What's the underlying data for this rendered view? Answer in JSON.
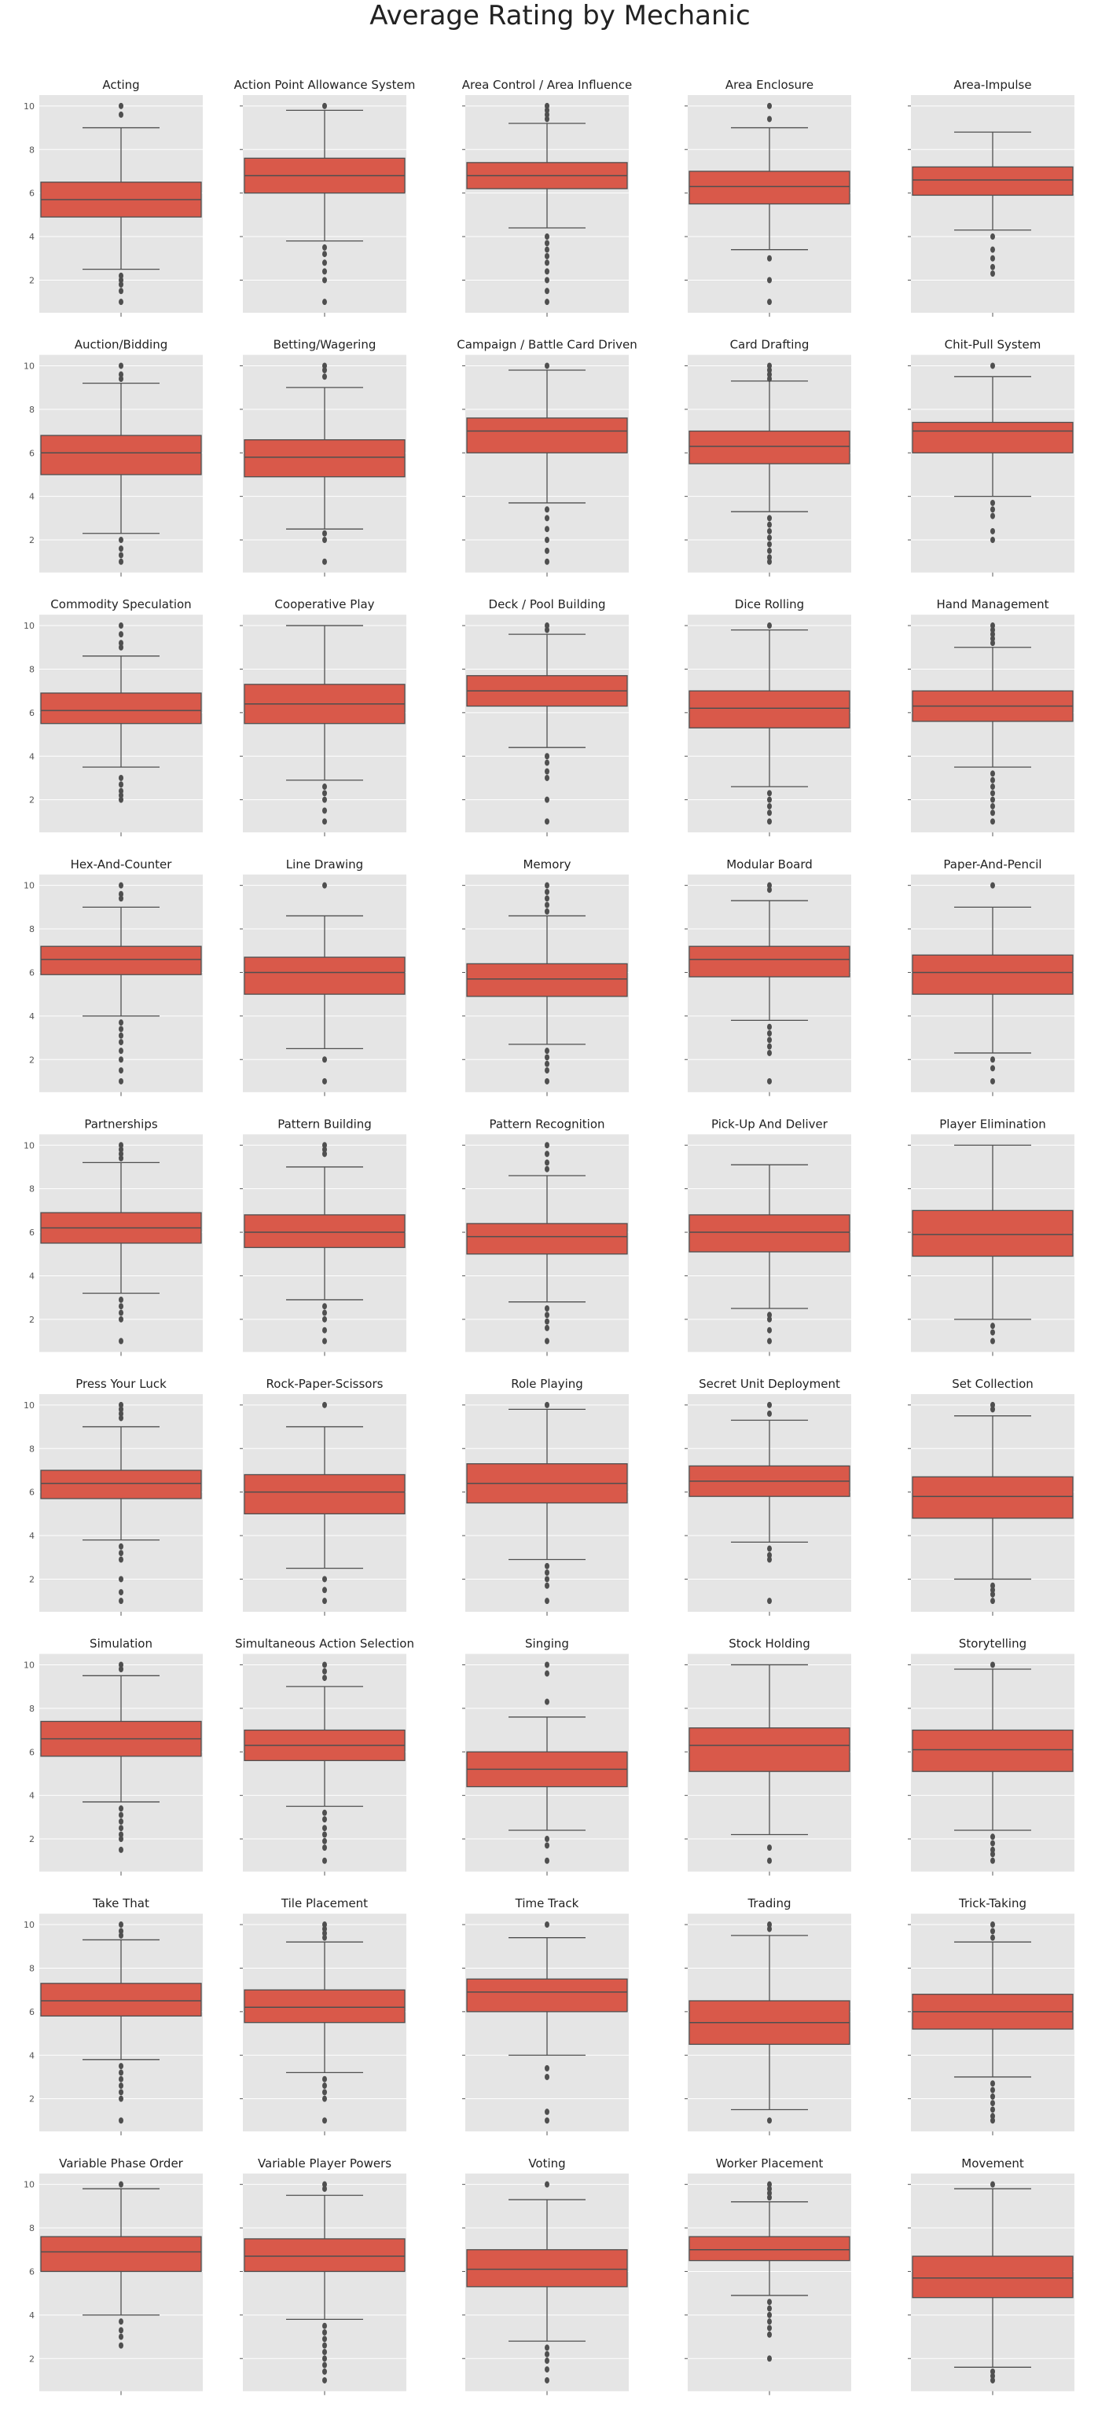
{
  "title": "Average Rating by Mechanic",
  "style": {
    "panel_bg": "#e5e5e5",
    "grid": "#ffffff",
    "box_fill": "#d9594a",
    "line": "#4f4f4f",
    "tick_text": "#555555",
    "title_text": "#222222"
  },
  "chart_data": {
    "type": "box",
    "shared_y": true,
    "ylim": [
      0.5,
      10.5
    ],
    "yticks": [
      2,
      4,
      6,
      8,
      10
    ],
    "grid": true,
    "panels": [
      {
        "title": "Acting",
        "q1": 4.9,
        "median": 5.7,
        "q3": 6.5,
        "whisker_low": 2.5,
        "whisker_high": 9.0,
        "outliers": [
          10,
          9.6,
          2.2,
          2.0,
          1.8,
          1.5,
          1.0
        ]
      },
      {
        "title": "Action Point Allowance System",
        "q1": 6.0,
        "median": 6.8,
        "q3": 7.6,
        "whisker_low": 3.8,
        "whisker_high": 9.8,
        "outliers": [
          10,
          3.5,
          3.2,
          2.8,
          2.4,
          2.0,
          1.0
        ]
      },
      {
        "title": "Area Control / Area Influence",
        "q1": 6.2,
        "median": 6.8,
        "q3": 7.4,
        "whisker_low": 4.4,
        "whisker_high": 9.2,
        "outliers": [
          10,
          9.8,
          9.6,
          9.4,
          4.0,
          3.7,
          3.4,
          3.1,
          2.8,
          2.4,
          2.0,
          1.5,
          1.0
        ]
      },
      {
        "title": "Area Enclosure",
        "q1": 5.5,
        "median": 6.3,
        "q3": 7.0,
        "whisker_low": 3.4,
        "whisker_high": 9.0,
        "outliers": [
          10,
          9.4,
          3.0,
          2.0,
          1.0
        ]
      },
      {
        "title": "Area-Impulse",
        "q1": 5.9,
        "median": 6.6,
        "q3": 7.2,
        "whisker_low": 4.3,
        "whisker_high": 8.8,
        "outliers": [
          4.0,
          3.4,
          3.0,
          2.6,
          2.3
        ]
      },
      {
        "title": "Auction/Bidding",
        "q1": 5.0,
        "median": 6.0,
        "q3": 6.8,
        "whisker_low": 2.3,
        "whisker_high": 9.2,
        "outliers": [
          10,
          9.6,
          9.4,
          2.0,
          1.6,
          1.3,
          1.0
        ]
      },
      {
        "title": "Betting/Wagering",
        "q1": 4.9,
        "median": 5.8,
        "q3": 6.6,
        "whisker_low": 2.5,
        "whisker_high": 9.0,
        "outliers": [
          10,
          9.8,
          9.5,
          2.3,
          2.0,
          1.0
        ]
      },
      {
        "title": "Campaign / Battle Card Driven",
        "q1": 6.0,
        "median": 7.0,
        "q3": 7.6,
        "whisker_low": 3.7,
        "whisker_high": 9.8,
        "outliers": [
          10,
          3.4,
          3.0,
          2.5,
          2.0,
          1.5,
          1.0
        ]
      },
      {
        "title": "Card Drafting",
        "q1": 5.5,
        "median": 6.3,
        "q3": 7.0,
        "whisker_low": 3.3,
        "whisker_high": 9.3,
        "outliers": [
          10,
          9.8,
          9.6,
          9.4,
          3.0,
          2.7,
          2.4,
          2.1,
          1.8,
          1.5,
          1.2,
          1.0
        ]
      },
      {
        "title": "Chit-Pull System",
        "q1": 6.0,
        "median": 7.0,
        "q3": 7.4,
        "whisker_low": 4.0,
        "whisker_high": 9.5,
        "outliers": [
          10,
          3.7,
          3.4,
          3.1,
          2.4,
          2.0
        ]
      },
      {
        "title": "Commodity Speculation",
        "q1": 5.5,
        "median": 6.1,
        "q3": 6.9,
        "whisker_low": 3.5,
        "whisker_high": 8.6,
        "outliers": [
          10,
          9.6,
          9.2,
          9.0,
          3.0,
          2.7,
          2.4,
          2.2,
          2.0
        ]
      },
      {
        "title": "Cooperative Play",
        "q1": 5.5,
        "median": 6.4,
        "q3": 7.3,
        "whisker_low": 2.9,
        "whisker_high": 10.0,
        "outliers": [
          2.6,
          2.3,
          2.0,
          1.5,
          1.0
        ]
      },
      {
        "title": "Deck / Pool Building",
        "q1": 6.3,
        "median": 7.0,
        "q3": 7.7,
        "whisker_low": 4.4,
        "whisker_high": 9.6,
        "outliers": [
          10,
          9.8,
          4.0,
          3.7,
          3.3,
          3.0,
          2.0,
          1.0
        ]
      },
      {
        "title": "Dice Rolling",
        "q1": 5.3,
        "median": 6.2,
        "q3": 7.0,
        "whisker_low": 2.6,
        "whisker_high": 9.8,
        "outliers": [
          10,
          2.3,
          2.0,
          1.7,
          1.4,
          1.0
        ]
      },
      {
        "title": "Hand Management",
        "q1": 5.6,
        "median": 6.3,
        "q3": 7.0,
        "whisker_low": 3.5,
        "whisker_high": 9.0,
        "outliers": [
          10,
          9.8,
          9.6,
          9.4,
          9.2,
          3.2,
          2.9,
          2.6,
          2.3,
          2.0,
          1.7,
          1.4,
          1.0
        ]
      },
      {
        "title": "Hex-And-Counter",
        "q1": 5.9,
        "median": 6.6,
        "q3": 7.2,
        "whisker_low": 4.0,
        "whisker_high": 9.0,
        "outliers": [
          10,
          9.6,
          9.4,
          3.7,
          3.4,
          3.1,
          2.8,
          2.4,
          2.0,
          1.5,
          1.0
        ]
      },
      {
        "title": "Line Drawing",
        "q1": 5.0,
        "median": 6.0,
        "q3": 6.7,
        "whisker_low": 2.5,
        "whisker_high": 8.6,
        "outliers": [
          10,
          2.0,
          1.0
        ]
      },
      {
        "title": "Memory",
        "q1": 4.9,
        "median": 5.7,
        "q3": 6.4,
        "whisker_low": 2.7,
        "whisker_high": 8.6,
        "outliers": [
          10,
          9.7,
          9.4,
          9.1,
          8.8,
          2.4,
          2.1,
          1.8,
          1.5,
          1.0
        ]
      },
      {
        "title": "Modular Board",
        "q1": 5.8,
        "median": 6.6,
        "q3": 7.2,
        "whisker_low": 3.8,
        "whisker_high": 9.3,
        "outliers": [
          10,
          9.8,
          3.5,
          3.2,
          2.9,
          2.6,
          2.3,
          1.0
        ]
      },
      {
        "title": "Paper-And-Pencil",
        "q1": 5.0,
        "median": 6.0,
        "q3": 6.8,
        "whisker_low": 2.3,
        "whisker_high": 9.0,
        "outliers": [
          10,
          2.0,
          1.6,
          1.0
        ]
      },
      {
        "title": "Partnerships",
        "q1": 5.5,
        "median": 6.2,
        "q3": 6.9,
        "whisker_low": 3.2,
        "whisker_high": 9.2,
        "outliers": [
          10,
          9.8,
          9.6,
          9.4,
          2.9,
          2.6,
          2.3,
          2.0,
          1.0
        ]
      },
      {
        "title": "Pattern Building",
        "q1": 5.3,
        "median": 6.0,
        "q3": 6.8,
        "whisker_low": 2.9,
        "whisker_high": 9.0,
        "outliers": [
          10,
          9.8,
          9.6,
          2.6,
          2.3,
          2.0,
          1.5,
          1.0
        ]
      },
      {
        "title": "Pattern Recognition",
        "q1": 5.0,
        "median": 5.8,
        "q3": 6.4,
        "whisker_low": 2.8,
        "whisker_high": 8.6,
        "outliers": [
          10,
          9.6,
          9.2,
          8.9,
          2.5,
          2.2,
          1.9,
          1.6,
          1.0
        ]
      },
      {
        "title": "Pick-Up And Deliver",
        "q1": 5.1,
        "median": 6.0,
        "q3": 6.8,
        "whisker_low": 2.5,
        "whisker_high": 9.1,
        "outliers": [
          2.2,
          2.0,
          1.5,
          1.0
        ]
      },
      {
        "title": "Player Elimination",
        "q1": 4.9,
        "median": 5.9,
        "q3": 7.0,
        "whisker_low": 2.0,
        "whisker_high": 10.0,
        "outliers": [
          1.7,
          1.4,
          1.0
        ]
      },
      {
        "title": "Press Your Luck",
        "q1": 5.7,
        "median": 6.4,
        "q3": 7.0,
        "whisker_low": 3.8,
        "whisker_high": 9.0,
        "outliers": [
          10,
          9.8,
          9.6,
          9.4,
          3.5,
          3.2,
          2.9,
          2.0,
          1.4,
          1.0
        ]
      },
      {
        "title": "Rock-Paper-Scissors",
        "q1": 5.0,
        "median": 6.0,
        "q3": 6.8,
        "whisker_low": 2.5,
        "whisker_high": 9.0,
        "outliers": [
          10,
          2.0,
          1.5,
          1.0
        ]
      },
      {
        "title": "Role Playing",
        "q1": 5.5,
        "median": 6.4,
        "q3": 7.3,
        "whisker_low": 2.9,
        "whisker_high": 9.8,
        "outliers": [
          10,
          2.6,
          2.3,
          2.0,
          1.7,
          1.0
        ]
      },
      {
        "title": "Secret Unit Deployment",
        "q1": 5.8,
        "median": 6.5,
        "q3": 7.2,
        "whisker_low": 3.7,
        "whisker_high": 9.3,
        "outliers": [
          10,
          9.6,
          3.4,
          3.1,
          2.9,
          1.0
        ]
      },
      {
        "title": "Set Collection",
        "q1": 4.8,
        "median": 5.8,
        "q3": 6.7,
        "whisker_low": 2.0,
        "whisker_high": 9.5,
        "outliers": [
          10,
          9.8,
          1.7,
          1.5,
          1.3,
          1.0
        ]
      },
      {
        "title": "Simulation",
        "q1": 5.8,
        "median": 6.6,
        "q3": 7.4,
        "whisker_low": 3.7,
        "whisker_high": 9.5,
        "outliers": [
          10,
          9.8,
          3.4,
          3.1,
          2.8,
          2.5,
          2.2,
          2.0,
          1.5
        ]
      },
      {
        "title": "Simultaneous Action Selection",
        "q1": 5.6,
        "median": 6.3,
        "q3": 7.0,
        "whisker_low": 3.5,
        "whisker_high": 9.0,
        "outliers": [
          10,
          9.7,
          9.4,
          3.2,
          2.9,
          2.5,
          2.2,
          1.9,
          1.6,
          1.0
        ]
      },
      {
        "title": "Singing",
        "q1": 4.4,
        "median": 5.2,
        "q3": 6.0,
        "whisker_low": 2.4,
        "whisker_high": 7.6,
        "outliers": [
          10,
          9.6,
          8.3,
          2.0,
          1.7,
          1.0
        ]
      },
      {
        "title": "Stock Holding",
        "q1": 5.1,
        "median": 6.3,
        "q3": 7.1,
        "whisker_low": 2.2,
        "whisker_high": 10.0,
        "outliers": [
          1.6,
          1.0
        ]
      },
      {
        "title": "Storytelling",
        "q1": 5.1,
        "median": 6.1,
        "q3": 7.0,
        "whisker_low": 2.4,
        "whisker_high": 9.8,
        "outliers": [
          10,
          2.1,
          1.8,
          1.5,
          1.3,
          1.0
        ]
      },
      {
        "title": "Take That",
        "q1": 5.8,
        "median": 6.5,
        "q3": 7.3,
        "whisker_low": 3.8,
        "whisker_high": 9.3,
        "outliers": [
          10,
          9.7,
          9.5,
          3.5,
          3.2,
          2.9,
          2.6,
          2.3,
          2.0,
          1.0
        ]
      },
      {
        "title": "Tile Placement",
        "q1": 5.5,
        "median": 6.2,
        "q3": 7.0,
        "whisker_low": 3.2,
        "whisker_high": 9.2,
        "outliers": [
          10,
          9.8,
          9.6,
          9.4,
          2.9,
          2.6,
          2.3,
          2.0,
          1.0
        ]
      },
      {
        "title": "Time Track",
        "q1": 6.0,
        "median": 6.9,
        "q3": 7.5,
        "whisker_low": 4.0,
        "whisker_high": 9.4,
        "outliers": [
          10,
          3.4,
          3.0,
          1.4,
          1.0
        ]
      },
      {
        "title": "Trading",
        "q1": 4.5,
        "median": 5.5,
        "q3": 6.5,
        "whisker_low": 1.5,
        "whisker_high": 9.5,
        "outliers": [
          10,
          9.8,
          1.0
        ]
      },
      {
        "title": "Trick-Taking",
        "q1": 5.2,
        "median": 6.0,
        "q3": 6.8,
        "whisker_low": 3.0,
        "whisker_high": 9.2,
        "outliers": [
          10,
          9.7,
          9.4,
          2.7,
          2.4,
          2.1,
          1.8,
          1.5,
          1.2,
          1.0
        ]
      },
      {
        "title": "Variable Phase Order",
        "q1": 6.0,
        "median": 6.9,
        "q3": 7.6,
        "whisker_low": 4.0,
        "whisker_high": 9.8,
        "outliers": [
          10,
          3.7,
          3.3,
          3.0,
          2.6
        ]
      },
      {
        "title": "Variable Player Powers",
        "q1": 6.0,
        "median": 6.7,
        "q3": 7.5,
        "whisker_low": 3.8,
        "whisker_high": 9.5,
        "outliers": [
          10,
          9.8,
          3.5,
          3.2,
          2.9,
          2.6,
          2.3,
          2.0,
          1.7,
          1.4,
          1.0
        ]
      },
      {
        "title": "Voting",
        "q1": 5.3,
        "median": 6.1,
        "q3": 7.0,
        "whisker_low": 2.8,
        "whisker_high": 9.3,
        "outliers": [
          10,
          2.5,
          2.2,
          1.9,
          1.5,
          1.0
        ]
      },
      {
        "title": "Worker Placement",
        "q1": 6.5,
        "median": 7.0,
        "q3": 7.6,
        "whisker_low": 4.9,
        "whisker_high": 9.2,
        "outliers": [
          10,
          9.8,
          9.6,
          9.4,
          4.6,
          4.3,
          4.0,
          3.7,
          3.4,
          3.1,
          2.0
        ]
      },
      {
        "title": "Movement",
        "q1": 4.8,
        "median": 5.7,
        "q3": 6.7,
        "whisker_low": 1.6,
        "whisker_high": 9.8,
        "outliers": [
          10,
          1.4,
          1.2,
          1.0
        ]
      }
    ]
  }
}
